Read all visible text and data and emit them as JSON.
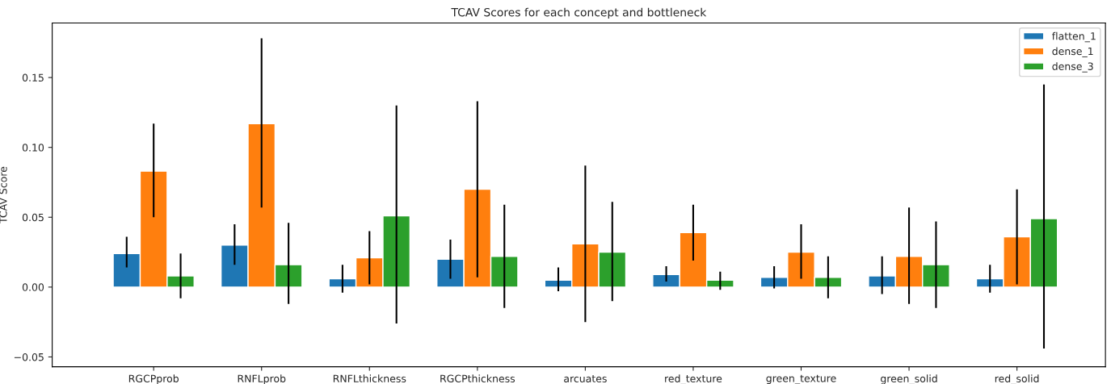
{
  "chart_data": {
    "type": "bar",
    "title": "TCAV Scores for each concept and bottleneck",
    "ylabel": "TCAV Score",
    "categories": [
      "RGCPprob",
      "RNFLprob",
      "RNFLthickness",
      "RGCPthickness",
      "arcuates",
      "red_texture",
      "green_texture",
      "green_solid",
      "red_solid"
    ],
    "series": [
      {
        "name": "flatten_1",
        "color": "#1f77b4",
        "values": [
          0.024,
          0.03,
          0.006,
          0.02,
          0.005,
          0.009,
          0.007,
          0.008,
          0.006
        ],
        "errors": [
          [
            0.014,
            0.036
          ],
          [
            0.016,
            0.045
          ],
          [
            -0.004,
            0.016
          ],
          [
            0.006,
            0.034
          ],
          [
            -0.003,
            0.014
          ],
          [
            0.004,
            0.015
          ],
          [
            -0.001,
            0.015
          ],
          [
            -0.005,
            0.022
          ],
          [
            -0.004,
            0.016
          ]
        ]
      },
      {
        "name": "dense_1",
        "color": "#ff7f0e",
        "values": [
          0.083,
          0.117,
          0.021,
          0.07,
          0.031,
          0.039,
          0.025,
          0.022,
          0.036
        ],
        "errors": [
          [
            0.05,
            0.117
          ],
          [
            0.057,
            0.178
          ],
          [
            0.002,
            0.04
          ],
          [
            0.007,
            0.133
          ],
          [
            -0.025,
            0.087
          ],
          [
            0.019,
            0.059
          ],
          [
            0.006,
            0.045
          ],
          [
            -0.012,
            0.057
          ],
          [
            0.002,
            0.07
          ]
        ]
      },
      {
        "name": "dense_3",
        "color": "#2ca02c",
        "values": [
          0.008,
          0.016,
          0.051,
          0.022,
          0.025,
          0.005,
          0.007,
          0.016,
          0.049
        ],
        "errors": [
          [
            -0.008,
            0.024
          ],
          [
            -0.012,
            0.046
          ],
          [
            -0.026,
            0.13
          ],
          [
            -0.015,
            0.059
          ],
          [
            -0.01,
            0.061
          ],
          [
            -0.002,
            0.011
          ],
          [
            -0.008,
            0.022
          ],
          [
            -0.015,
            0.047
          ],
          [
            -0.044,
            0.145
          ]
        ]
      }
    ],
    "ylim": [
      -0.057,
      0.189
    ],
    "yticks": [
      {
        "value": -0.05,
        "label": "−0.05"
      },
      {
        "value": 0.0,
        "label": "0.00"
      },
      {
        "value": 0.05,
        "label": "0.05"
      },
      {
        "value": 0.1,
        "label": "0.10"
      },
      {
        "value": 0.15,
        "label": "0.15"
      }
    ],
    "legend": "top right",
    "grid": false
  }
}
